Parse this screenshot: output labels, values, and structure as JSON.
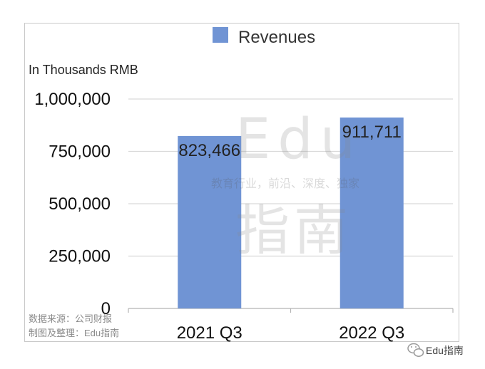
{
  "chart_data": {
    "type": "bar",
    "categories": [
      "2021 Q3",
      "2022 Q3"
    ],
    "series": [
      {
        "name": "Revenues",
        "values": [
          823466,
          911711
        ]
      }
    ],
    "data_labels": [
      "823,466",
      "911,711"
    ],
    "ylabel": "In Thousands RMB",
    "ylim": [
      0,
      1000000
    ],
    "yticks": [
      0,
      250000,
      500000,
      750000,
      1000000
    ],
    "ytick_labels": [
      "0",
      "250,000",
      "500,000",
      "750,000",
      "1,000,000"
    ],
    "grid": true,
    "legend": "top-center",
    "bar_color": "#7094d4"
  },
  "source_note": {
    "line1": "数据来源：公司财报",
    "line2": "制图及整理：Edu指南"
  },
  "watermark": {
    "brand": "Edu",
    "brand_cn": "指南",
    "tagline": "教育行业，前沿、深度、独家"
  },
  "account_badge": {
    "icon": "wechat-icon",
    "label": "Edu指南"
  }
}
